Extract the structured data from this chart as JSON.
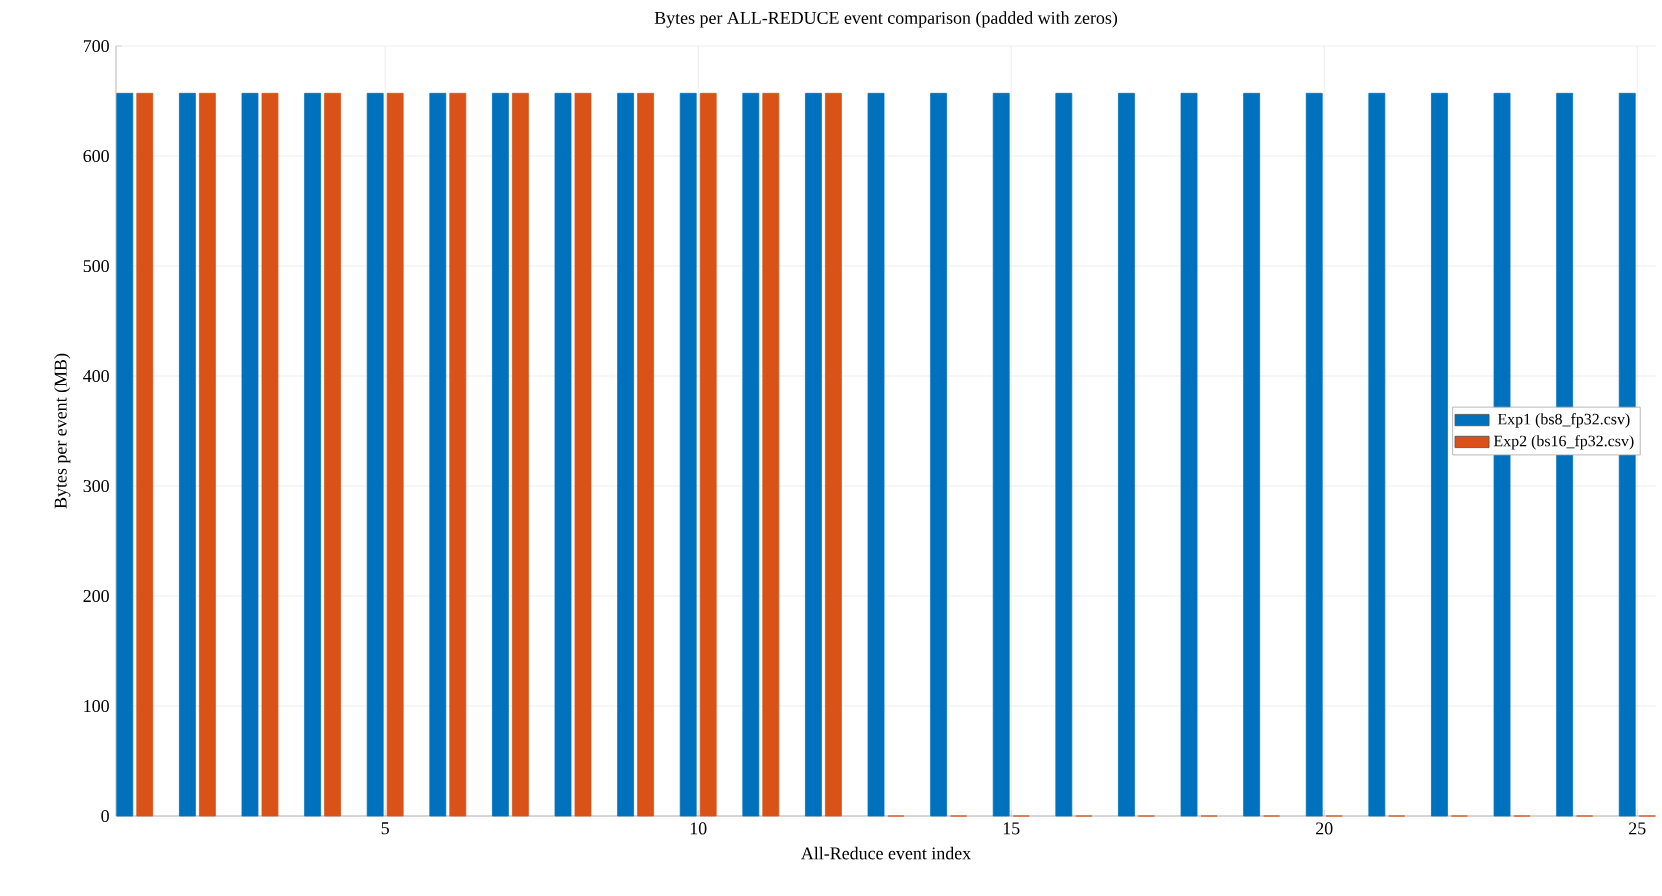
{
  "chart_data": {
    "type": "bar",
    "title": "Bytes per ALL-REDUCE event comparison (padded with zeros)",
    "xlabel": "All-Reduce event index",
    "ylabel": "Bytes per event (MB)",
    "x": [
      1,
      2,
      3,
      4,
      5,
      6,
      7,
      8,
      9,
      10,
      11,
      12,
      13,
      14,
      15,
      16,
      17,
      18,
      19,
      20,
      21,
      22,
      23,
      24,
      25
    ],
    "series": [
      {
        "name": "Exp1 (bs8_fp32.csv)",
        "color": "#0072bd",
        "values": [
          657,
          657,
          657,
          657,
          657,
          657,
          657,
          657,
          657,
          657,
          657,
          657,
          657,
          657,
          657,
          657,
          657,
          657,
          657,
          657,
          657,
          657,
          657,
          657,
          657
        ]
      },
      {
        "name": "Exp2 (bs16_fp32.csv)",
        "color": "#d95319",
        "values": [
          657,
          657,
          657,
          657,
          657,
          657,
          657,
          657,
          657,
          657,
          657,
          657,
          0,
          0,
          0,
          0,
          0,
          0,
          0,
          0,
          0,
          0,
          0,
          0,
          0
        ]
      }
    ],
    "xlim": [
      0.7,
      25.3
    ],
    "ylim": [
      0,
      700
    ],
    "xticks": [
      5,
      10,
      15,
      20,
      25
    ],
    "yticks": [
      0,
      100,
      200,
      300,
      400,
      500,
      600,
      700
    ],
    "grid": true,
    "legend": "right"
  }
}
